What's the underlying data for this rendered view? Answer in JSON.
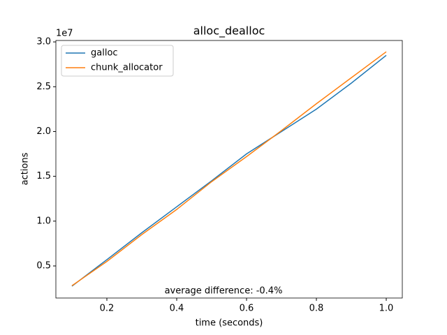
{
  "chart_data": {
    "type": "line",
    "title": "alloc_dealloc",
    "x_label": "time (seconds)",
    "y_label": "actions",
    "y_offset_label": "1e7",
    "annotation": "average difference: -0.4%",
    "x": [
      0.1,
      0.2,
      0.3,
      0.4,
      0.5,
      0.6,
      0.7,
      0.8,
      0.9,
      1.0
    ],
    "series": [
      {
        "name": "galloc",
        "color": "#1f77b4",
        "values": [
          2740000,
          5700000,
          8700000,
          11600000,
          14500000,
          17500000,
          20000000,
          22500000,
          25400000,
          28500000
        ]
      },
      {
        "name": "chunk_allocator",
        "color": "#ff7f0e",
        "values": [
          2790000,
          5500000,
          8500000,
          11300000,
          14400000,
          17200000,
          20100000,
          23100000,
          26000000,
          28900000
        ]
      }
    ],
    "xlim": [
      0.054,
      1.046
    ],
    "xticks": [
      0.2,
      0.4,
      0.6,
      0.8,
      {
        "value": 1,
        "label": "1.0"
      }
    ],
    "ylim": [
      1420000,
      30160000
    ],
    "yticks": [
      {
        "value": 5000000,
        "label": "0.5"
      },
      {
        "value": 10000000,
        "label": "1.0"
      },
      {
        "value": 15000000,
        "label": "1.5"
      },
      {
        "value": 20000000,
        "label": "2.0"
      },
      {
        "value": 25000000,
        "label": "2.5"
      },
      {
        "value": 30000000,
        "label": "3.0"
      }
    ],
    "legend": "upper left",
    "grid": false
  }
}
